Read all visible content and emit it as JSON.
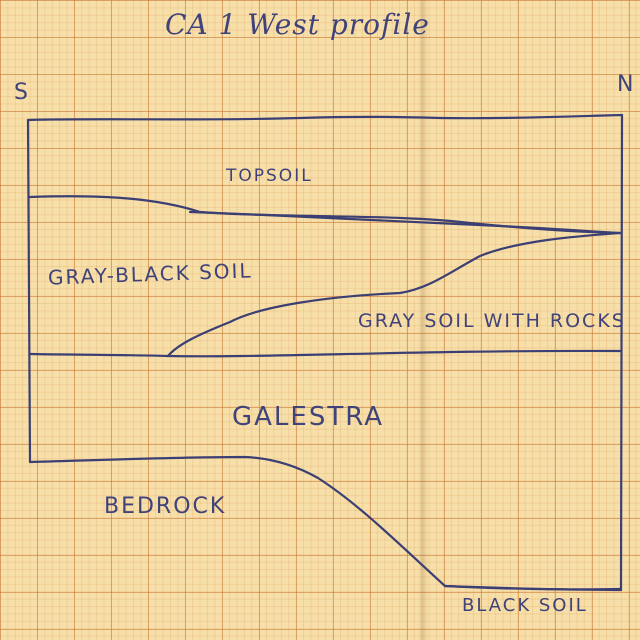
{
  "title": "CA 1   West profile",
  "directions": {
    "left": "S",
    "right": "N"
  },
  "layers": {
    "topsoil": "TOPSOIL",
    "gray_black_soil": "GRAY-BLACK SOIL",
    "gray_soil_with_rocks": "GRAY SOIL WITH ROCKS",
    "galestra": "GALESTRA",
    "bedrock": "BEDROCK",
    "black_soil": "BLACK SOIL"
  },
  "ink_color": "#3b3f73",
  "paper_color": "#f7dfa9"
}
